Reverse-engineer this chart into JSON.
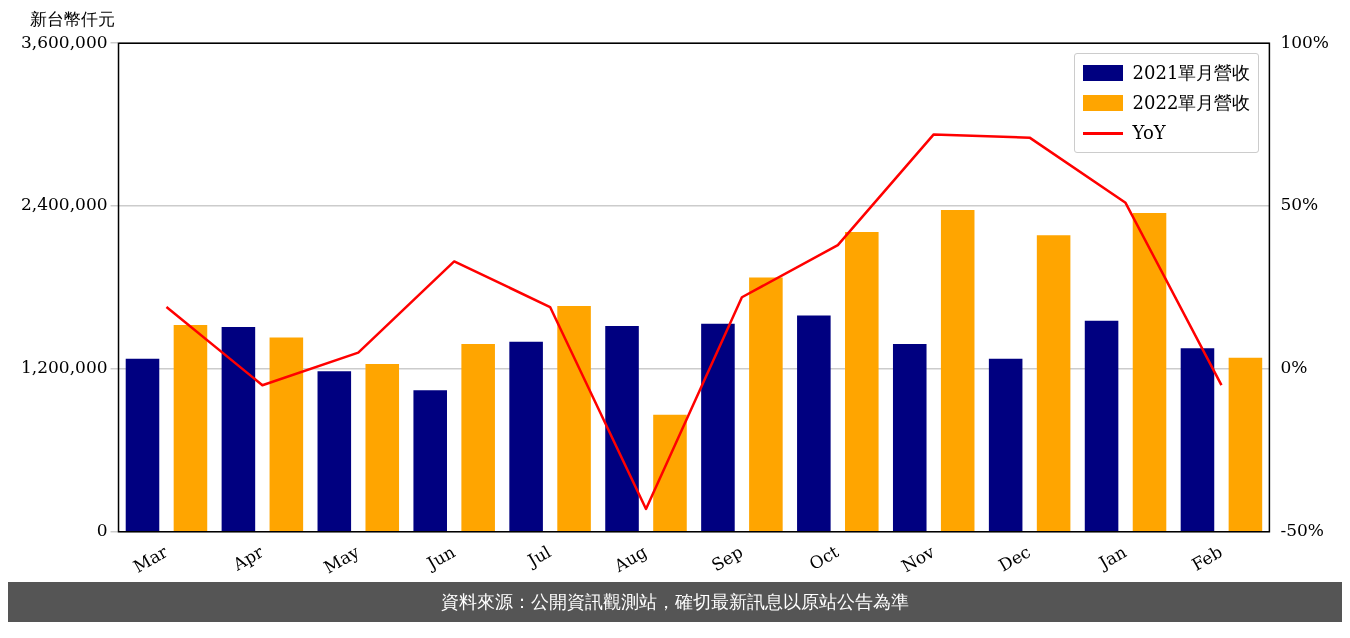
{
  "chart_data": {
    "type": "bar",
    "ylabel": "新台幣仟元",
    "categories": [
      "Mar",
      "Apr",
      "May",
      "Jun",
      "Jul",
      "Aug",
      "Sep",
      "Oct",
      "Nov",
      "Dec",
      "Jan",
      "Feb"
    ],
    "series": [
      {
        "name": "2021單月營收",
        "color": "#000080",
        "values": [
          1275000,
          1508000,
          1182000,
          1042000,
          1400000,
          1516000,
          1532000,
          1594000,
          1384000,
          1275000,
          1555000,
          1353000
        ]
      },
      {
        "name": "2022單月營收",
        "color": "#ffa500",
        "values": [
          1524000,
          1431000,
          1236000,
          1384000,
          1664000,
          863000,
          1874000,
          2208000,
          2371000,
          2185000,
          2348000,
          1283000
        ]
      },
      {
        "name": "YoY",
        "type": "line",
        "axis": "y2",
        "color": "#ff0000",
        "values": [
          19,
          -5,
          5,
          33,
          19,
          -43,
          22,
          38,
          72,
          71,
          51,
          -5
        ]
      }
    ],
    "ylim": [
      0,
      3600000
    ],
    "yticks": [
      {
        "value": 0,
        "label": "0"
      },
      {
        "value": 1200000,
        "label": "1,200,000"
      },
      {
        "value": 2400000,
        "label": "2,400,000"
      },
      {
        "value": 3600000,
        "label": "3,600,000"
      }
    ],
    "y2lim": [
      -50,
      100
    ],
    "y2ticks": [
      {
        "value": -50,
        "label": "-50%"
      },
      {
        "value": 0,
        "label": "0%"
      },
      {
        "value": 50,
        "label": "50%"
      },
      {
        "value": 100,
        "label": "100%"
      }
    ],
    "grid": "y",
    "legend": "top right",
    "marker": "none",
    "line_style": "solid",
    "annotations": [
      "資料來源：公開資訊觀測站，確切最新訊息以原站公告為準"
    ]
  }
}
